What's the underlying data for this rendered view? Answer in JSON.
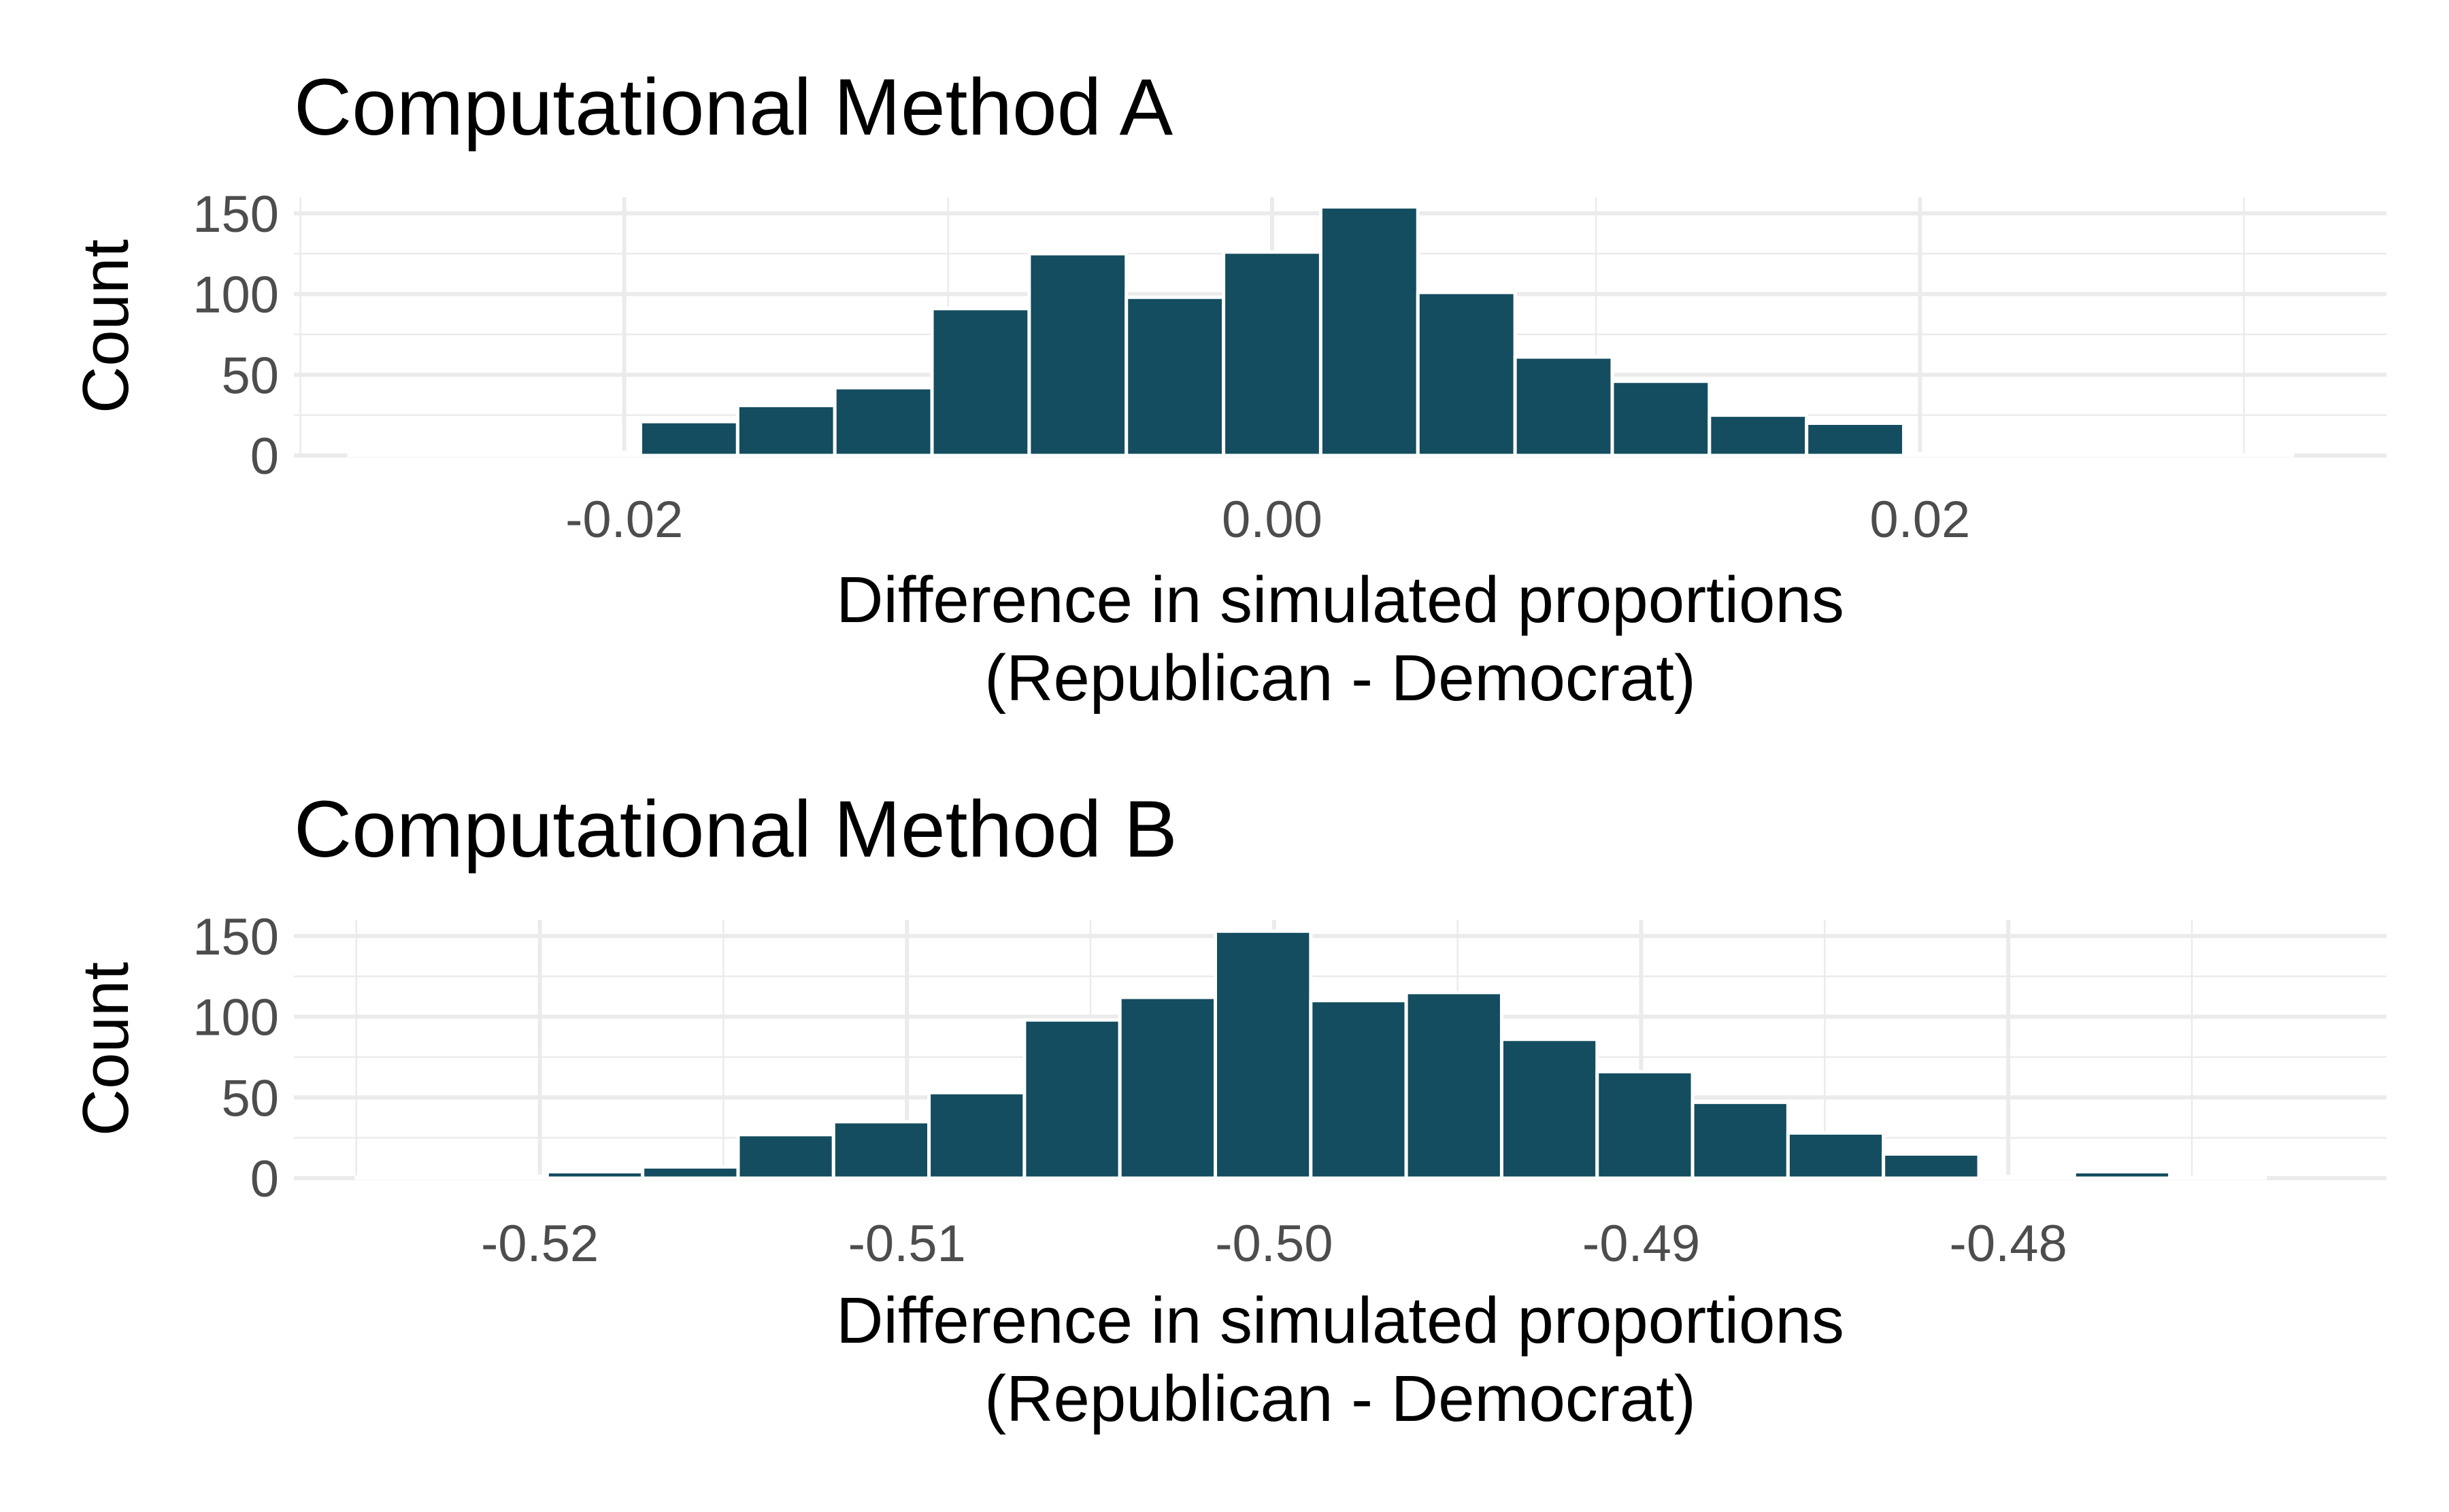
{
  "chart_data": [
    {
      "type": "bar",
      "title": "Computational Method A",
      "xlabel_lines": [
        "Difference in simulated proportions",
        "(Republican - Democrat)"
      ],
      "ylabel": "Count",
      "xlim": [
        -0.0302,
        0.0344
      ],
      "ylim": [
        0,
        160
      ],
      "x_ticks": [
        -0.02,
        0.0,
        0.02
      ],
      "x_tick_labels": [
        "-0.02",
        "0.00",
        "0.02"
      ],
      "y_ticks": [
        0,
        50,
        100,
        150
      ],
      "y_tick_labels": [
        "0",
        "50",
        "100",
        "150"
      ],
      "bin_width": 0.003,
      "bins": [
        -0.027,
        -0.024,
        -0.021,
        -0.018,
        -0.015,
        -0.012,
        -0.009,
        -0.006,
        -0.003,
        0.0,
        0.003,
        0.006,
        0.009,
        0.012,
        0.015,
        0.018,
        0.021,
        0.024,
        0.027,
        0.03
      ],
      "counts": [
        0,
        2,
        2,
        21,
        31,
        42,
        91,
        125,
        98,
        126,
        154,
        101,
        61,
        46,
        25,
        20,
        1,
        0,
        0,
        0
      ],
      "bar_color": "#134d5f",
      "grid": true
    },
    {
      "type": "bar",
      "title": "Computational Method B",
      "xlabel_lines": [
        "Difference in simulated proportions",
        "(Republican - Democrat)"
      ],
      "ylabel": "Count",
      "xlim": [
        -0.5267,
        -0.4697
      ],
      "ylim": [
        0,
        160
      ],
      "x_ticks": [
        -0.52,
        -0.51,
        -0.5,
        -0.49,
        -0.48
      ],
      "x_tick_labels": [
        "-0.52",
        "-0.51",
        "-0.50",
        "-0.49",
        "-0.48"
      ],
      "y_ticks": [
        0,
        50,
        100,
        150
      ],
      "y_tick_labels": [
        "0",
        "50",
        "100",
        "150"
      ],
      "bin_width": 0.0026,
      "bins": [
        -0.5237,
        -0.5211,
        -0.5185,
        -0.5159,
        -0.5133,
        -0.5107,
        -0.5081,
        -0.5055,
        -0.5029,
        -0.5003,
        -0.4977,
        -0.4951,
        -0.4925,
        -0.4899,
        -0.4873,
        -0.4847,
        -0.4821,
        -0.4795,
        -0.4769,
        -0.4743
      ],
      "counts": [
        0,
        1,
        4,
        7,
        27,
        35,
        53,
        98,
        112,
        153,
        110,
        115,
        86,
        66,
        47,
        28,
        15,
        1,
        4,
        0
      ],
      "bar_color": "#134d5f",
      "grid": true
    }
  ]
}
